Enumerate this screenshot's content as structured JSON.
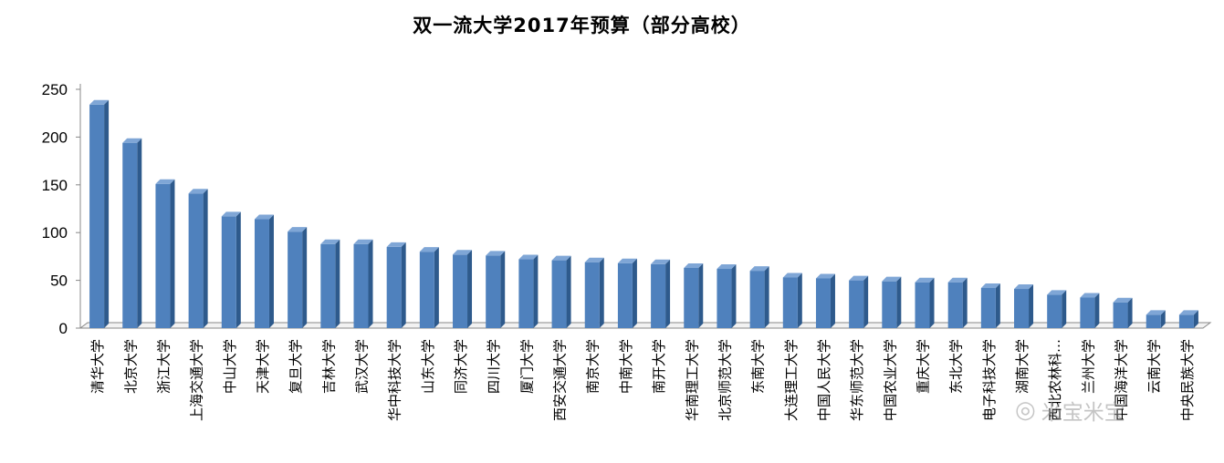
{
  "chart_data": {
    "type": "bar",
    "title": "双一流大学2017年预算（部分高校）",
    "xlabel": "",
    "ylabel": "",
    "ylim": [
      0,
      250
    ],
    "yticks": [
      0,
      50,
      100,
      150,
      200,
      250
    ],
    "grid": false,
    "legend": "none",
    "categories": [
      "清华大学",
      "北京大学",
      "浙江大学",
      "上海交通大学",
      "中山大学",
      "天津大学",
      "复旦大学",
      "吉林大学",
      "武汉大学",
      "华中科技大学",
      "山东大学",
      "同济大学",
      "四川大学",
      "厦门大学",
      "西安交通大学",
      "南京大学",
      "中南大学",
      "南开大学",
      "华南理工大学",
      "北京师范大学",
      "东南大学",
      "大连理工大学",
      "中国人民大学",
      "华东师范大学",
      "中国农业大学",
      "重庆大学",
      "东北大学",
      "电子科技大学",
      "湖南大学",
      "西北农林科…",
      "兰州大学",
      "中国海洋大学",
      "云南大学",
      "中央民族大学"
    ],
    "values": [
      234,
      194,
      151,
      141,
      117,
      114,
      101,
      88,
      88,
      85,
      80,
      77,
      76,
      72,
      71,
      69,
      68,
      67,
      63,
      62,
      60,
      53,
      52,
      50,
      49,
      48,
      48,
      42,
      41,
      35,
      32,
      27,
      14,
      14
    ],
    "bar_color": "#4F81BD"
  },
  "watermark": {
    "text": "米宝米宝",
    "icon": "wechat-icon"
  }
}
